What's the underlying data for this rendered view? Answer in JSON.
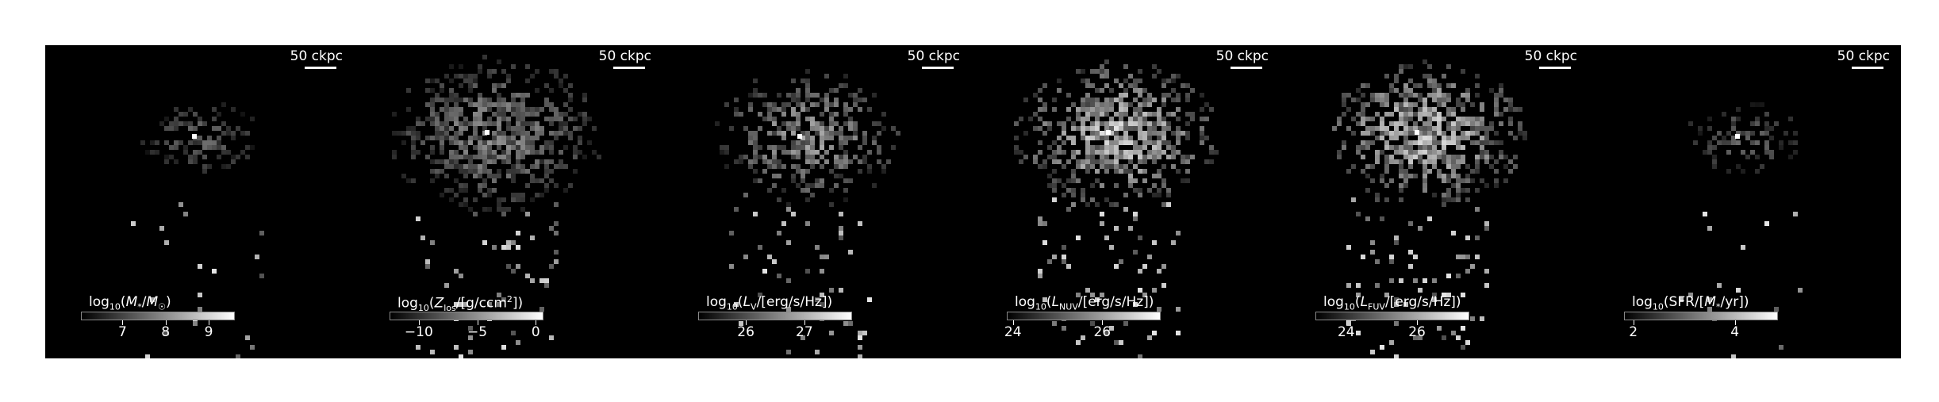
{
  "panels": [
    {
      "scale_label": "50 ckpc",
      "colorbar_label": "log10(M*/M☉)",
      "colorbar_ticks": [
        {
          "label": "7",
          "frac": 0.27
        },
        {
          "label": "8",
          "frac": 0.55
        },
        {
          "label": "9",
          "frac": 0.83
        }
      ],
      "spread": "compact"
    },
    {
      "scale_label": "50 ckpc",
      "colorbar_label": "log10(Zlos/[g/ccm²])",
      "colorbar_ticks": [
        {
          "label": "−10",
          "frac": 0.19
        },
        {
          "label": "−5",
          "frac": 0.57
        },
        {
          "label": "0",
          "frac": 0.95
        }
      ],
      "spread": "wide"
    },
    {
      "scale_label": "50 ckpc",
      "colorbar_label": "log10(LV/[erg/s/Hz])",
      "colorbar_ticks": [
        {
          "label": "26",
          "frac": 0.31
        },
        {
          "label": "27",
          "frac": 0.69
        }
      ],
      "spread": "medium"
    },
    {
      "scale_label": "50 ckpc",
      "colorbar_label": "log10(LNUV/[erg/s/Hz])",
      "colorbar_ticks": [
        {
          "label": "24",
          "frac": 0.04
        },
        {
          "label": "26",
          "frac": 0.62
        }
      ],
      "spread": "bright"
    },
    {
      "scale_label": "50 ckpc",
      "colorbar_label": "log10(LFUV/[erg/s/Hz])",
      "colorbar_ticks": [
        {
          "label": "24",
          "frac": 0.2
        },
        {
          "label": "26",
          "frac": 0.66
        }
      ],
      "spread": "bright"
    },
    {
      "scale_label": "50 ckpc",
      "colorbar_label": "log10(SFR/[M*/yr])",
      "colorbar_ticks": [
        {
          "label": "2",
          "frac": 0.06
        },
        {
          "label": "4",
          "frac": 0.72
        }
      ],
      "spread": "compact"
    }
  ]
}
